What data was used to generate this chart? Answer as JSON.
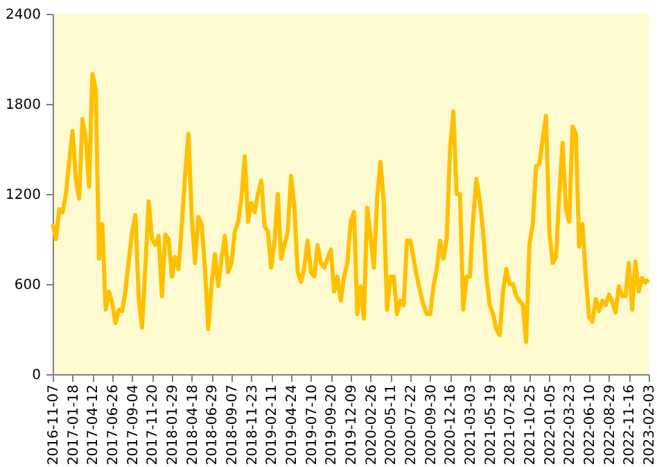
{
  "chart_data": {
    "type": "line",
    "categories": [
      "2016-11-07",
      null,
      null,
      null,
      null,
      null,
      "2017-01-18",
      null,
      null,
      null,
      null,
      null,
      "2017-04-12",
      null,
      null,
      null,
      null,
      null,
      "2017-06-26",
      null,
      null,
      null,
      null,
      null,
      "2017-09-04",
      null,
      null,
      null,
      null,
      null,
      "2017-11-20",
      null,
      null,
      null,
      null,
      null,
      "2018-01-29",
      null,
      null,
      null,
      null,
      null,
      "2018-04-18",
      null,
      null,
      null,
      null,
      null,
      "2018-06-29",
      null,
      null,
      null,
      null,
      null,
      "2018-09-07",
      null,
      null,
      null,
      null,
      null,
      "2018-11-23",
      null,
      null,
      null,
      null,
      null,
      "2019-02-11",
      null,
      null,
      null,
      null,
      null,
      "2019-04-24",
      null,
      null,
      null,
      null,
      null,
      "2019-07-10",
      null,
      null,
      null,
      null,
      null,
      "2019-09-20",
      null,
      null,
      null,
      null,
      null,
      "2019-12-09",
      null,
      null,
      null,
      null,
      null,
      "2020-02-26",
      null,
      null,
      null,
      null,
      null,
      "2020-05-11",
      null,
      null,
      null,
      null,
      null,
      "2020-07-22",
      null,
      null,
      null,
      null,
      null,
      "2020-09-30",
      null,
      null,
      null,
      null,
      null,
      "2020-12-16",
      null,
      null,
      null,
      null,
      null,
      "2021-03-03",
      null,
      null,
      null,
      null,
      null,
      "2021-05-19",
      null,
      null,
      null,
      null,
      null,
      "2021-07-28",
      null,
      null,
      null,
      null,
      null,
      "2021-10-25",
      null,
      null,
      null,
      null,
      null,
      "2022-01-05",
      null,
      null,
      null,
      null,
      null,
      "2022-03-23",
      null,
      null,
      null,
      null,
      null,
      "2022-06-10",
      null,
      null,
      null,
      null,
      null,
      "2022-08-29",
      null,
      null,
      null,
      null,
      null,
      "2022-11-16",
      null,
      null,
      null,
      null,
      null,
      "2023-02-03"
    ],
    "series": [
      {
        "color": "#ffc000",
        "values": [
          1000,
          900,
          1100,
          1077,
          1200,
          1420,
          1620,
          1300,
          1170,
          1700,
          1570,
          1250,
          2000,
          1900,
          770,
          1000,
          430,
          550,
          470,
          340,
          430,
          420,
          560,
          760,
          950,
          1060,
          500,
          310,
          720,
          1150,
          900,
          860,
          920,
          520,
          930,
          900,
          650,
          780,
          700,
          1000,
          1320,
          1600,
          1050,
          740,
          1046,
          1000,
          700,
          300,
          600,
          800,
          585,
          770,
          920,
          680,
          740,
          950,
          1015,
          1170,
          1450,
          1015,
          1140,
          1080,
          1200,
          1290,
          985,
          950,
          710,
          890,
          1200,
          770,
          860,
          950,
          1320,
          1110,
          680,
          615,
          710,
          890,
          680,
          650,
          860,
          740,
          710,
          770,
          830,
          550,
          650,
          490,
          650,
          740,
          1015,
          1080,
          400,
          585,
          370,
          1110,
          920,
          710,
          1170,
          1415,
          1140,
          430,
          650,
          650,
          400,
          490,
          460,
          890,
          890,
          770,
          650,
          550,
          460,
          400,
          400,
          585,
          700,
          890,
          770,
          900,
          1500,
          1750,
          1200,
          1200,
          430,
          650,
          650,
          1040,
          1300,
          1150,
          950,
          650,
          460,
          400,
          300,
          260,
          550,
          700,
          600,
          600,
          520,
          490,
          460,
          215,
          870,
          1000,
          1385,
          1400,
          1570,
          1720,
          950,
          740,
          780,
          1200,
          1540,
          1100,
          1015,
          1650,
          1600,
          850,
          1000,
          650,
          380,
          350,
          500,
          420,
          490,
          460,
          530,
          480,
          410,
          585,
          520,
          520,
          740,
          430,
          750,
          550,
          640,
          610,
          630
        ]
      }
    ],
    "ylim": [
      0,
      2400
    ],
    "yticks": [
      0,
      600,
      1200,
      1800,
      2400
    ],
    "grid": false,
    "legend": false,
    "marker": "none",
    "line_style": "solid"
  }
}
